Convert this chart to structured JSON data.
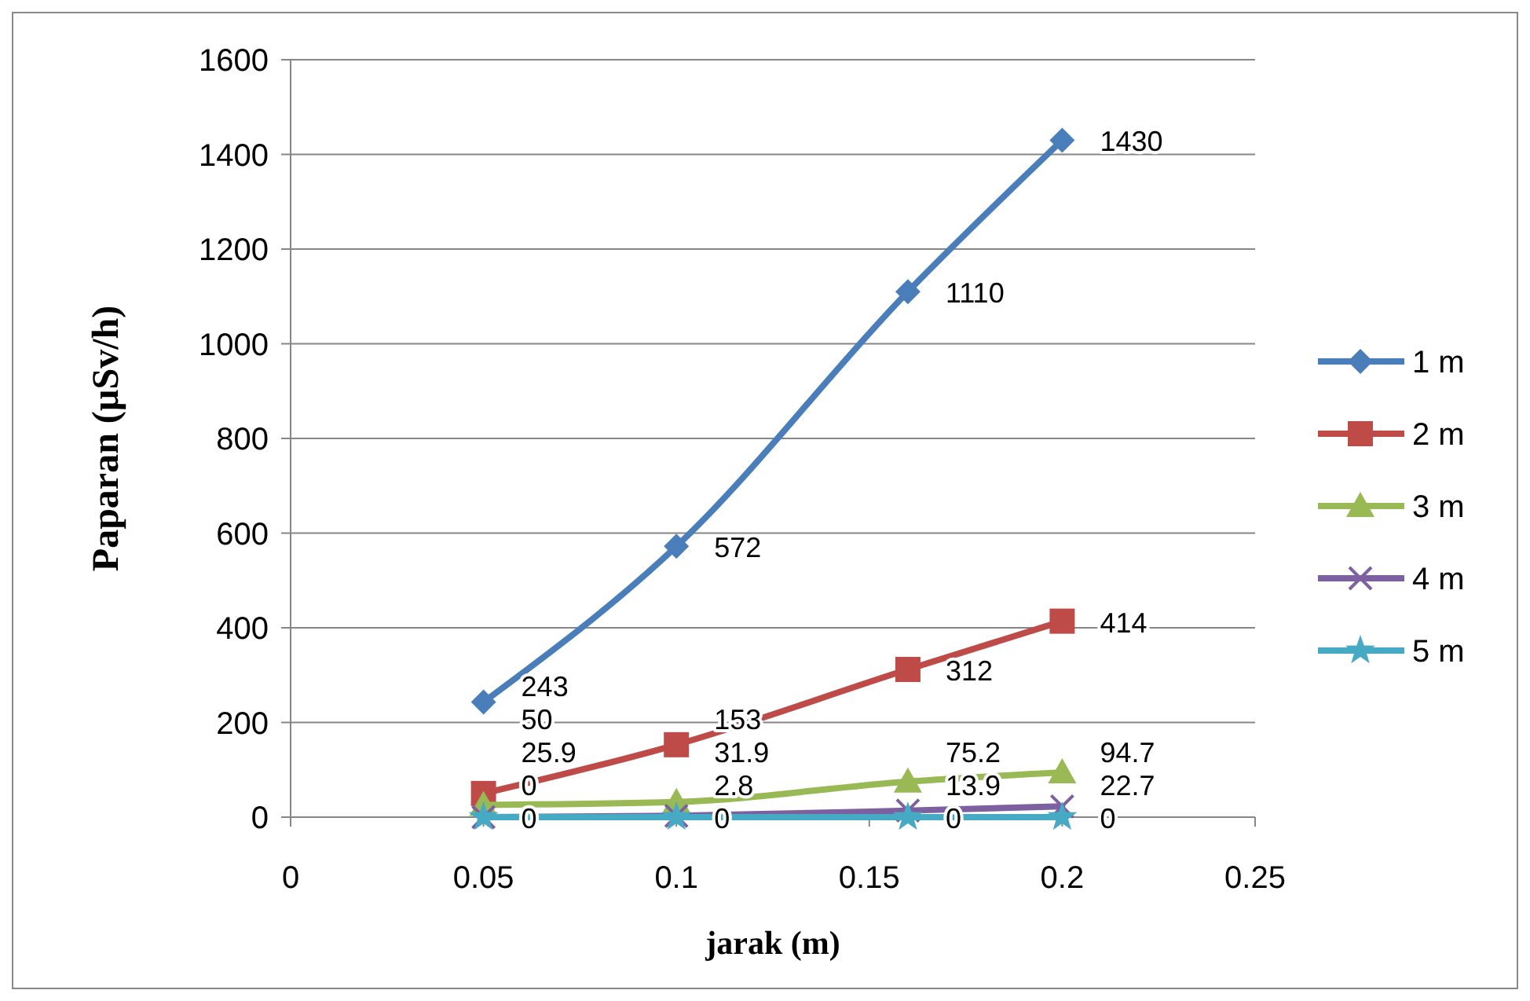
{
  "chart_data": {
    "type": "line",
    "xlabel": "jarak (m)",
    "ylabel": "Paparan (µSv/h)",
    "x": [
      0.05,
      0.1,
      0.16,
      0.2
    ],
    "xlim": [
      0,
      0.25
    ],
    "xticks": [
      0,
      0.05,
      0.1,
      0.15,
      0.2,
      0.25
    ],
    "ylim": [
      0,
      1600
    ],
    "yticks": [
      0,
      200,
      400,
      600,
      800,
      1000,
      1200,
      1400,
      1600
    ],
    "grid": "y",
    "legend": "right",
    "data_labels": true,
    "series": [
      {
        "name": "1 m",
        "color": "#4a7ebb",
        "marker": "diamond",
        "values": [
          243,
          572,
          1110,
          1430
        ]
      },
      {
        "name": "2 m",
        "color": "#be4b48",
        "marker": "square",
        "values": [
          50,
          153,
          312,
          414
        ]
      },
      {
        "name": "3 m",
        "color": "#98b954",
        "marker": "triangle",
        "values": [
          25.9,
          31.9,
          75.2,
          94.7
        ]
      },
      {
        "name": "4 m",
        "color": "#7d60a0",
        "marker": "cross",
        "values": [
          0,
          2.8,
          13.9,
          22.7
        ]
      },
      {
        "name": "5 m",
        "color": "#46aac5",
        "marker": "star",
        "values": [
          0,
          0,
          0,
          0
        ]
      }
    ]
  }
}
